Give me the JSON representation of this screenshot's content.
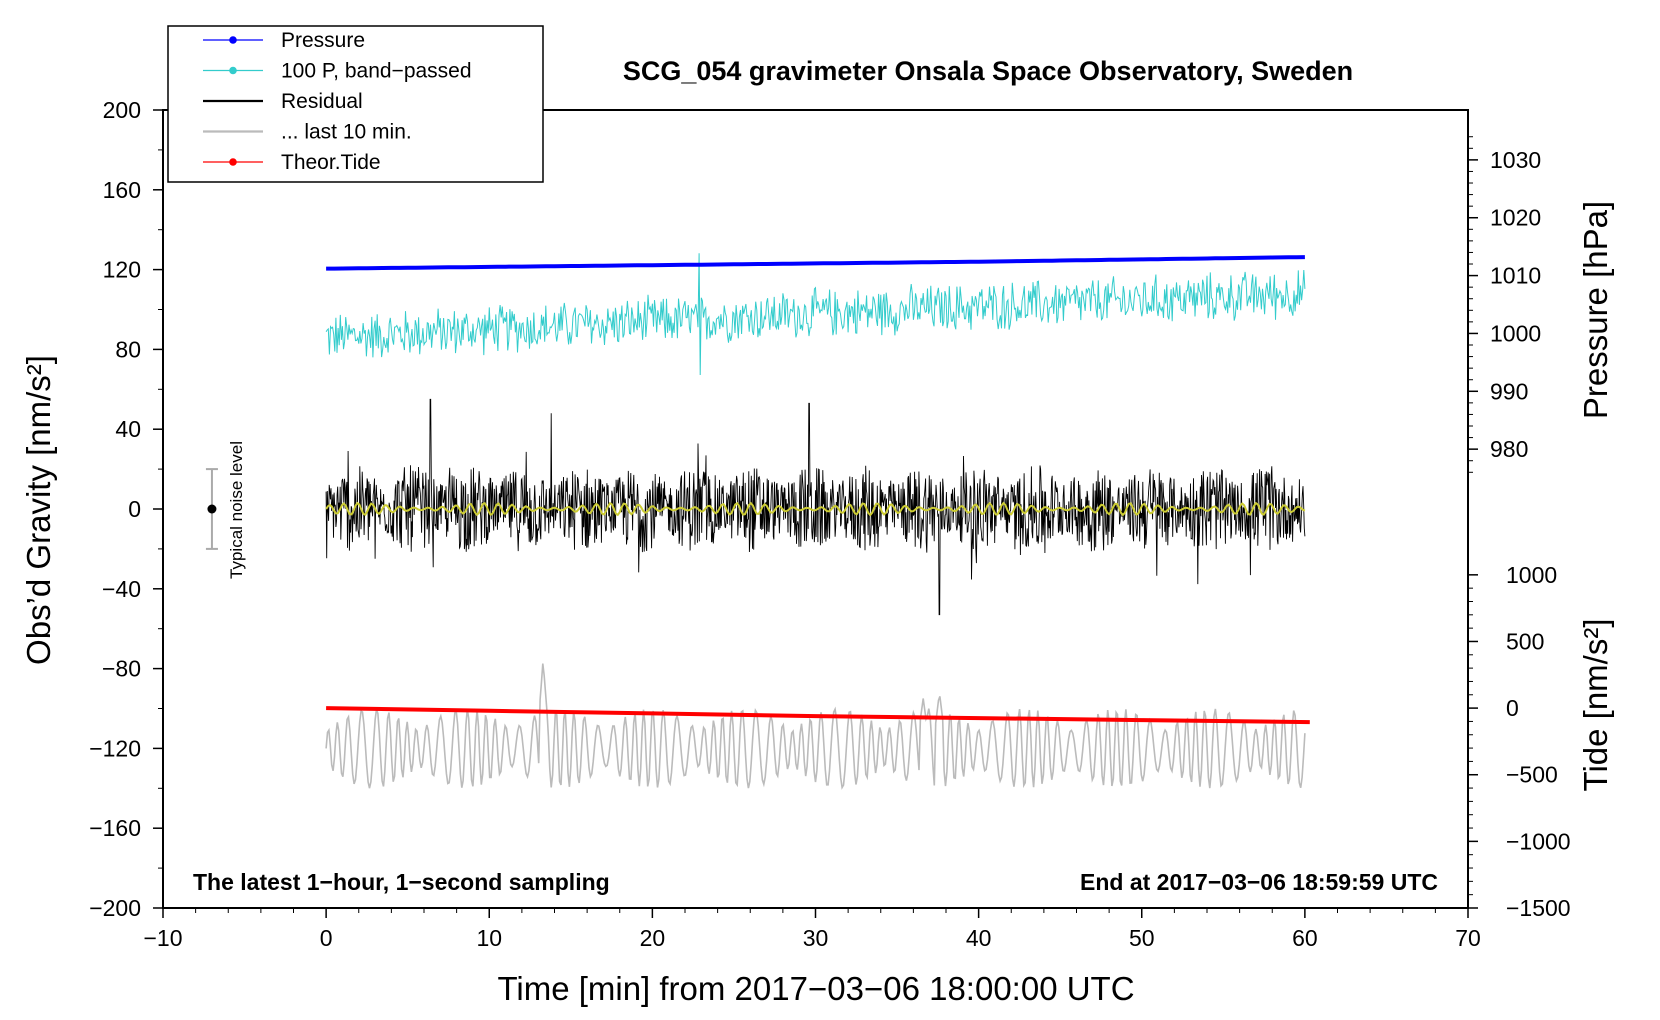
{
  "chart_data": {
    "type": "line",
    "title": "SCG_054 gravimeter Onsala Space Observatory, Sweden",
    "xlabel": "Time [min] from 2017−03−06 18:00:00 UTC",
    "ylabel_left": "Obs’d Gravity [nm/s²]",
    "ylabel_right_pressure": "Pressure [hPa]",
    "ylabel_right_tide": "Tide [nm/s²]",
    "xlim": [
      -10,
      70
    ],
    "ylim_left": [
      -200,
      200
    ],
    "xticks": [
      -10,
      0,
      10,
      20,
      30,
      40,
      50,
      60,
      70
    ],
    "xtick_labels": [
      "−10",
      "0",
      "10",
      "20",
      "30",
      "40",
      "50",
      "60",
      "70"
    ],
    "yticks_left": [
      200,
      160,
      120,
      80,
      40,
      0,
      -40,
      -80,
      -120,
      -160,
      -200
    ],
    "ytick_labels_left": [
      "200",
      "160",
      "120",
      "80",
      "40",
      "0",
      "−40",
      "−80",
      "−120",
      "−160",
      "−200"
    ],
    "pressure_axis": {
      "ticks": [
        1030,
        1020,
        1010,
        1000,
        990,
        980
      ],
      "tick_labels": [
        "1030",
        "1020",
        "1010",
        "1000",
        "990",
        "980"
      ],
      "map": {
        "value_a": 1030,
        "gravity_a": 175,
        "value_b": 980,
        "gravity_b": 30
      }
    },
    "tide_axis": {
      "ticks": [
        1000,
        500,
        0,
        -500,
        -1000,
        -1500
      ],
      "tick_labels": [
        "1000",
        "500",
        "0",
        "−500",
        "−1000",
        "−1500"
      ],
      "map": {
        "value_a": 1000,
        "gravity_a": -33,
        "value_b": -1500,
        "gravity_b": -200
      }
    },
    "legend": [
      {
        "label": "Pressure",
        "color": "#0000ff",
        "marker": true
      },
      {
        "label": "100 P, band−passed",
        "color": "#33cccc",
        "marker": true
      },
      {
        "label": "Residual",
        "color": "#000000",
        "marker": false
      },
      {
        "label": "... last 10 min.",
        "color": "#bbbbbb",
        "marker": false
      },
      {
        "label": "Theor.Tide",
        "color": "#ff0000",
        "marker": true
      }
    ],
    "series": [
      {
        "name": "Pressure",
        "color": "#0000ff",
        "x": [
          0,
          10,
          20,
          30,
          40,
          50,
          60
        ],
        "y": [
          1011.2,
          1011.5,
          1011.8,
          1012.1,
          1012.4,
          1012.8,
          1013.2
        ]
      },
      {
        "name": "100 P, band−passed",
        "color": "#33cccc",
        "baseline": {
          "x": [
            0,
            30,
            60
          ],
          "y": [
            86,
            98,
            108
          ]
        },
        "envelope": 14
      },
      {
        "name": "Residual",
        "color": "#000000",
        "baseline": 0,
        "envelope": 22,
        "peaks": {
          "x": [
            6.4,
            13.8,
            29.6,
            37.6
          ],
          "y": [
            55,
            48,
            53,
            -53
          ]
        }
      },
      {
        "name": "... last 10 min.",
        "color": "#bbbbbb",
        "baseline": -120,
        "envelope": 20,
        "peaks": {
          "x": [
            13.3,
            36.6,
            37.6
          ],
          "y": [
            -76,
            -95,
            -92
          ]
        }
      },
      {
        "name": "Theor.Tide",
        "color": "#ff0000",
        "x": [
          0,
          10,
          20,
          30,
          40,
          50,
          60.3
        ],
        "y": [
          0,
          -20,
          -40,
          -60,
          -75,
          -90,
          -105
        ]
      },
      {
        "name": "Residual (smoothed)",
        "color": "#cccc33",
        "baseline": 0,
        "envelope": 3
      }
    ],
    "noise_level": {
      "label": "Typical noise level",
      "x": -7,
      "center": 0,
      "half_range": 20
    },
    "annotations": {
      "bottom_left": "The latest 1−hour, 1−second sampling",
      "bottom_right": "End at 2017−03−06 18:59:59 UTC"
    }
  }
}
